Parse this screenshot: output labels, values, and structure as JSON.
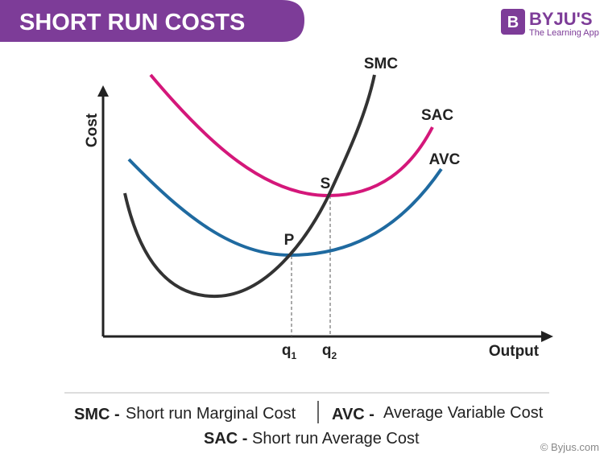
{
  "header": {
    "title": "SHORT RUN COSTS"
  },
  "logo": {
    "icon": "B",
    "name": "BYJU'S",
    "tagline": "The Learning App"
  },
  "axes": {
    "y_label": "Cost",
    "x_label": "Output"
  },
  "curves": [
    {
      "label": "SMC"
    },
    {
      "label": "SAC"
    },
    {
      "label": "AVC"
    }
  ],
  "points": [
    {
      "label": "P",
      "quantity": {
        "base": "q",
        "sub": "1"
      }
    },
    {
      "label": "S",
      "quantity": {
        "base": "q",
        "sub": "2"
      }
    }
  ],
  "legend": [
    {
      "abbr": "SMC -",
      "description": "Short run Marginal Cost"
    },
    {
      "abbr": "AVC -",
      "description": "Average Variable Cost"
    },
    {
      "abbr": "SAC -",
      "description": "Short run Average Cost"
    }
  ],
  "footer": {
    "copyright": "© Byjus.com"
  }
}
